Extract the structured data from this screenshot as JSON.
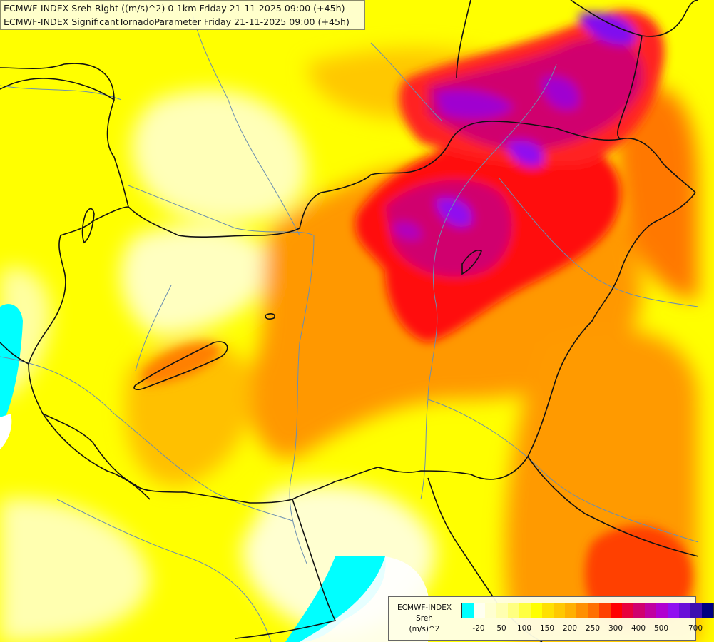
{
  "titles": {
    "line1": "ECMWF-INDEX Sreh Right ((m/s)^2) 0-1km Friday 21-11-2025 09:00 (+45h)",
    "line2": "ECMWF-INDEX SignificantTornadoParameter Friday 21-11-2025 09:00 (+45h)"
  },
  "legend": {
    "line1": "ECMWF-INDEX",
    "line2": "Sreh",
    "line3": "(m/s)^2",
    "colors": [
      "#00ffff",
      "#fffff0",
      "#ffffd0",
      "#ffffb0",
      "#ffff80",
      "#ffff40",
      "#ffff00",
      "#ffe000",
      "#ffc800",
      "#ffb000",
      "#ff9000",
      "#ff7000",
      "#ff4000",
      "#ff0000",
      "#e8003c",
      "#d0006e",
      "#c000a0",
      "#b000d0",
      "#9010f0",
      "#6a10d8",
      "#3c10b0",
      "#000080"
    ],
    "ticks": [
      "-20",
      "50",
      "100",
      "150",
      "200",
      "250",
      "300",
      "400",
      "500",
      "700"
    ]
  }
}
